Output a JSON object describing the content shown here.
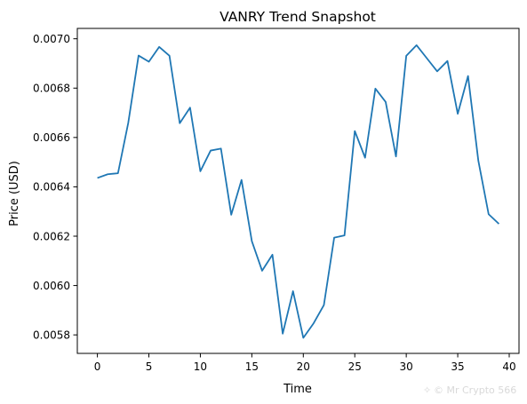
{
  "chart_data": {
    "type": "line",
    "title": "VANRY Trend Snapshot",
    "xlabel": "Time",
    "ylabel": "Price (USD)",
    "xlim": [
      -1.95,
      40.95
    ],
    "ylim": [
      0.005725,
      0.007042
    ],
    "x_ticks": [
      0,
      5,
      10,
      15,
      20,
      25,
      30,
      35,
      40
    ],
    "y_ticks": [
      0.0058,
      0.006,
      0.0062,
      0.0064,
      0.0066,
      0.0068,
      0.007
    ],
    "y_tick_labels": [
      "0.0058",
      "0.0060",
      "0.0062",
      "0.0064",
      "0.0066",
      "0.0068",
      "0.0070"
    ],
    "grid": false,
    "legend": "none",
    "line_color": "#1f77b4",
    "series": [
      {
        "x": [
          0,
          1,
          2,
          3,
          4,
          5,
          6,
          7,
          8,
          9,
          10,
          11,
          12,
          13,
          14,
          15,
          16,
          17,
          18,
          19,
          20,
          21,
          22,
          23,
          24,
          25,
          26,
          27,
          28,
          29,
          30,
          31,
          32,
          33,
          34,
          35,
          36,
          37,
          38,
          39
        ],
        "values": [
          0.006436,
          0.006451,
          0.006455,
          0.00666,
          0.006932,
          0.006907,
          0.006967,
          0.006931,
          0.006658,
          0.006721,
          0.006463,
          0.006547,
          0.006555,
          0.006287,
          0.006428,
          0.00618,
          0.00606,
          0.006125,
          0.005805,
          0.005977,
          0.005788,
          0.005847,
          0.005921,
          0.006194,
          0.006203,
          0.006626,
          0.006518,
          0.006798,
          0.006744,
          0.006523,
          0.006931,
          0.006974,
          0.006921,
          0.006868,
          0.00691,
          0.006696,
          0.006849,
          0.006506,
          0.006289,
          0.00625
        ]
      }
    ]
  },
  "watermark": {
    "text": "© Mr Crypto 566",
    "icon": "sparkle-icon"
  }
}
